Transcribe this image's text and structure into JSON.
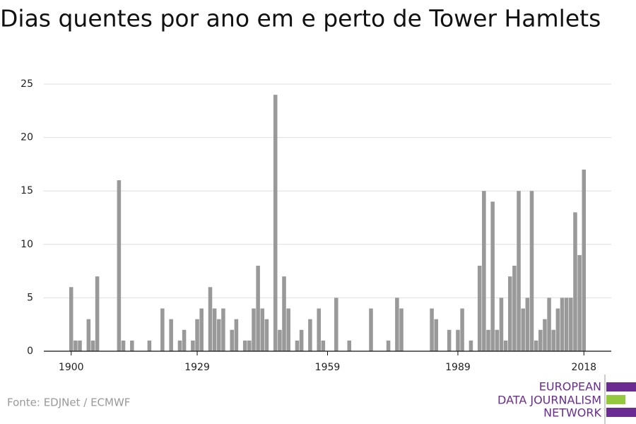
{
  "chart_data": {
    "type": "bar",
    "title": "Dias quentes por ano em e perto de Tower Hamlets",
    "source": "Fonte: EDJNet / ECMWF",
    "logo": [
      "EUROPEAN",
      "DATA JOURNALISM",
      "NETWORK"
    ],
    "color": "#999999",
    "grid": true,
    "x": [
      1900,
      1901,
      1902,
      1903,
      1904,
      1905,
      1906,
      1907,
      1908,
      1909,
      1910,
      1911,
      1912,
      1913,
      1914,
      1915,
      1916,
      1917,
      1918,
      1919,
      1920,
      1921,
      1922,
      1923,
      1924,
      1925,
      1926,
      1927,
      1928,
      1929,
      1930,
      1931,
      1932,
      1933,
      1934,
      1935,
      1936,
      1937,
      1938,
      1939,
      1940,
      1941,
      1942,
      1943,
      1944,
      1945,
      1946,
      1947,
      1948,
      1949,
      1950,
      1951,
      1952,
      1953,
      1954,
      1955,
      1956,
      1957,
      1958,
      1959,
      1960,
      1961,
      1962,
      1963,
      1964,
      1965,
      1966,
      1967,
      1968,
      1969,
      1970,
      1971,
      1972,
      1973,
      1974,
      1975,
      1976,
      1977,
      1978,
      1979,
      1980,
      1981,
      1982,
      1983,
      1984,
      1985,
      1986,
      1987,
      1988,
      1989,
      1990,
      1991,
      1992,
      1993,
      1994,
      1995,
      1996,
      1997,
      1998,
      1999,
      2000,
      2001,
      2002,
      2003,
      2004,
      2005,
      2006,
      2007,
      2008,
      2009,
      2010,
      2011,
      2012,
      2013,
      2014,
      2015,
      2016,
      2017,
      2018
    ],
    "values": [
      6,
      1,
      1,
      0,
      3,
      1,
      7,
      0,
      0,
      0,
      0,
      16,
      1,
      0,
      1,
      0,
      0,
      0,
      1,
      0,
      0,
      4,
      0,
      3,
      0,
      1,
      2,
      0,
      1,
      3,
      4,
      0,
      6,
      4,
      3,
      4,
      0,
      2,
      3,
      0,
      1,
      1,
      4,
      8,
      4,
      3,
      0,
      24,
      2,
      7,
      4,
      0,
      1,
      2,
      0,
      3,
      0,
      4,
      1,
      0,
      0,
      5,
      0,
      0,
      1,
      0,
      0,
      0,
      0,
      4,
      0,
      0,
      0,
      1,
      0,
      5,
      4,
      0,
      0,
      0,
      0,
      0,
      0,
      4,
      3,
      0,
      0,
      2,
      0,
      2,
      4,
      0,
      1,
      0,
      8,
      15,
      2,
      14,
      2,
      5,
      1,
      7,
      8,
      15,
      4,
      5,
      15,
      1,
      2,
      3,
      5,
      2,
      4,
      5,
      5,
      5,
      13,
      9,
      17
    ],
    "xlim": [
      1893.7,
      2024.3
    ],
    "xticks": [
      1900,
      1929,
      1959,
      1989,
      2018
    ],
    "ylim": [
      0,
      25
    ],
    "yticks": [
      0,
      5,
      10,
      15,
      20,
      25
    ]
  }
}
